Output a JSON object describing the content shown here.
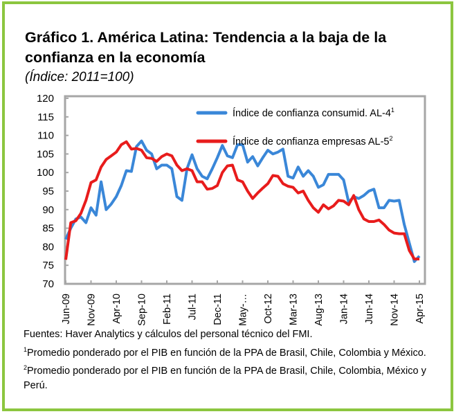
{
  "title": "Gráfico 1. América Latina: Tendencia a la baja de la confianza en la economía",
  "subtitle": "(Índice: 2011=100)",
  "notes": {
    "source": "Fuentes: Haver Analytics y cálculos del personal técnico del FMI.",
    "note1_mark": "1",
    "note1": "Promedio ponderado por el PIB en función de la PPA de Brasil, Chile, Colombia y México.",
    "note2_mark": "2",
    "note2": "Promedio ponderado por el PIB en función de la PPA de Brasil, Chile, Colombia, México y Perú."
  },
  "chart_data": {
    "type": "line",
    "title": "Gráfico 1. América Latina: Tendencia a la baja de la confianza en la economía",
    "ylabel": "(Índice: 2011=100)",
    "xlabel": "",
    "ylim": [
      70,
      120
    ],
    "yticks": [
      70,
      75,
      80,
      85,
      90,
      95,
      100,
      105,
      110,
      115,
      120
    ],
    "x_tick_labels": [
      "Jun-09",
      "Nov-09",
      "Apr-10",
      "Sep-10",
      "Feb-11",
      "Jul-11",
      "Dec-11",
      "May-…",
      "Oct-12",
      "Mar-13",
      "Aug-13",
      "Jan-14",
      "Jun-14",
      "Nov-14",
      "Apr-15"
    ],
    "x_tick_every_months": 5,
    "x_start": "Jun-09",
    "x_end": "Apr-15",
    "legend_position": "top-right",
    "grid": false,
    "series": [
      {
        "name": "Índice de confianza consumid. AL-4",
        "sup": "1",
        "color": "#3a87d8",
        "values": [
          82,
          85,
          87.5,
          88,
          86.5,
          90.5,
          88.5,
          97.5,
          90,
          91.5,
          93.5,
          96.5,
          100.5,
          100.3,
          107,
          108.5,
          106,
          105,
          101,
          102,
          102,
          101,
          93.5,
          92.5,
          101,
          104.8,
          101,
          99,
          98.3,
          101,
          104,
          107.3,
          104.5,
          104,
          107.5,
          107.5,
          102.8,
          104.3,
          101.8,
          104,
          106,
          105,
          105.5,
          106.3,
          99,
          98.5,
          101.5,
          99,
          100.5,
          99,
          96,
          96.7,
          99.5,
          99.5,
          99.5,
          98,
          92,
          93.5,
          93,
          93.8,
          95,
          95.5,
          90.5,
          90.5,
          92.5,
          92.3,
          92.5,
          86,
          81,
          76,
          77.5
        ]
      },
      {
        "name": "Índice de confianza empresas AL-5",
        "sup": "2",
        "color": "#e81c1c",
        "values": [
          76.5,
          86.5,
          87,
          89,
          92.5,
          97.3,
          98,
          101.5,
          103.5,
          104.5,
          105.5,
          107.5,
          108.3,
          106.3,
          106.5,
          106,
          104,
          103.8,
          103,
          104.3,
          105,
          104.5,
          102,
          100.5,
          101,
          100.5,
          97.5,
          97.5,
          95.5,
          95.7,
          96.5,
          100,
          101.8,
          102,
          98,
          97.5,
          95,
          93,
          94.5,
          95.8,
          97,
          99.2,
          99,
          97,
          96.3,
          96,
          94.5,
          95,
          92.5,
          90.5,
          89.3,
          91.3,
          90.2,
          91,
          92.5,
          92.3,
          91.3,
          93.8,
          90,
          87.5,
          86.8,
          86.8,
          87.2,
          86,
          84.5,
          83.7,
          83.5,
          83.5,
          79,
          76.7,
          76.7
        ]
      }
    ]
  }
}
